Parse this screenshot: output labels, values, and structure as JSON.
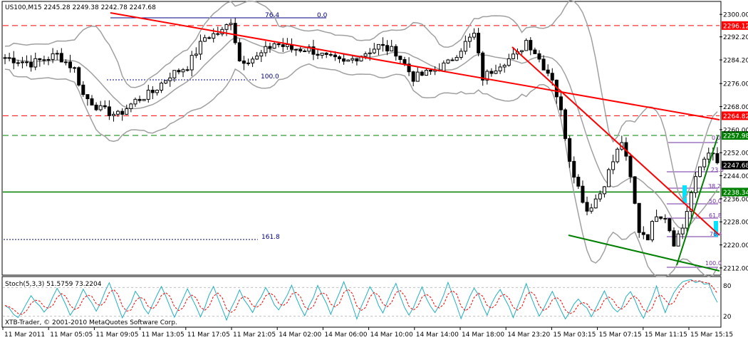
{
  "header": {
    "title": "US100,M15  2245.28 2249.38 2242.78 2247.68",
    "copyright": "XTB-Trader, © 2001-2010 MetaQuotes Software Corp."
  },
  "stoch": {
    "label": "Stoch(5,3,3) 51.5759 73.2204",
    "levels": [
      "80",
      "20"
    ],
    "ylim": [
      0,
      100
    ]
  },
  "colors": {
    "candle": "#000000",
    "bollinger": "#a0a0a0",
    "red_lines": "#ff0000",
    "green_lines": "#008000",
    "fib_lines": "#808080",
    "fib_text": "#7030a0",
    "stoch_main": "#20b0c0",
    "stoch_signal": "#ff0000",
    "current_price_bg": "#000000",
    "level_bg_red": "#ff0000",
    "level_bg_green": "#008000"
  },
  "fib_labels_top": [
    "76.4",
    "0.0",
    "100.0",
    "161.8"
  ],
  "fib_labels_right": [
    "0.0",
    "23.6",
    "38.2",
    "50.0",
    "61.8",
    "76.4",
    "100.0"
  ],
  "chart_data": {
    "type": "candlestick",
    "ylim": [
      2210,
      2304
    ],
    "y_ticks": [
      "2300.00",
      "2292.20",
      "2284.20",
      "2276.00",
      "2268.00",
      "2260.00",
      "2252.00",
      "2244.00",
      "2236.00",
      "2228.00",
      "2220.00",
      "2212.00"
    ],
    "x_ticks": [
      "11 Mar 2011",
      "11 Mar 05:05",
      "11 Mar 09:05",
      "11 Mar 13:05",
      "11 Mar 17:05",
      "11 Mar 21:05",
      "14 Mar 02:00",
      "14 Mar 06:00",
      "14 Mar 10:00",
      "14 Mar 14:00",
      "14 Mar 18:00",
      "14 Mar 23:20",
      "15 Mar 03:15",
      "15 Mar 07:15",
      "15 Mar 11:15",
      "15 Mar 15:15"
    ],
    "price_levels": [
      {
        "value": "2296.12",
        "style": "red-dashed"
      },
      {
        "value": "2264.82",
        "style": "red-dashed"
      },
      {
        "value": "2257.98",
        "style": "green-dashed"
      },
      {
        "value": "2247.68",
        "style": "current"
      },
      {
        "value": "2238.34",
        "style": "green-solid"
      }
    ],
    "anchors": [
      [
        0,
        2285
      ],
      [
        6,
        2283
      ],
      [
        12,
        2286
      ],
      [
        16,
        2281
      ],
      [
        18,
        2272
      ],
      [
        22,
        2267
      ],
      [
        26,
        2265
      ],
      [
        30,
        2270
      ],
      [
        34,
        2273
      ],
      [
        38,
        2279
      ],
      [
        42,
        2282
      ],
      [
        46,
        2292
      ],
      [
        50,
        2294
      ],
      [
        52,
        2298
      ],
      [
        54,
        2284
      ],
      [
        58,
        2285
      ],
      [
        62,
        2290
      ],
      [
        66,
        2288
      ],
      [
        70,
        2288
      ],
      [
        74,
        2285
      ],
      [
        78,
        2283
      ],
      [
        82,
        2286
      ],
      [
        86,
        2289
      ],
      [
        90,
        2287
      ],
      [
        94,
        2278
      ],
      [
        98,
        2280
      ],
      [
        102,
        2283
      ],
      [
        106,
        2290
      ],
      [
        108,
        2293
      ],
      [
        110,
        2278
      ],
      [
        114,
        2283
      ],
      [
        118,
        2286
      ],
      [
        120,
        2291
      ],
      [
        122,
        2287
      ],
      [
        124,
        2282
      ],
      [
        126,
        2278
      ],
      [
        128,
        2266
      ],
      [
        130,
        2250
      ],
      [
        132,
        2240
      ],
      [
        134,
        2232
      ],
      [
        137,
        2238
      ],
      [
        140,
        2249
      ],
      [
        142,
        2256
      ],
      [
        144,
        2243
      ],
      [
        146,
        2225
      ],
      [
        148,
        2223
      ],
      [
        150,
        2231
      ],
      [
        152,
        2230
      ],
      [
        154,
        2221
      ],
      [
        156,
        2226
      ],
      [
        158,
        2238
      ],
      [
        160,
        2247
      ],
      [
        162,
        2253
      ],
      [
        164,
        2248
      ]
    ],
    "stoch_anchors": [
      [
        0,
        45
      ],
      [
        3,
        15
      ],
      [
        6,
        65
      ],
      [
        9,
        25
      ],
      [
        12,
        80
      ],
      [
        15,
        20
      ],
      [
        18,
        75
      ],
      [
        21,
        30
      ],
      [
        24,
        88
      ],
      [
        27,
        15
      ],
      [
        30,
        70
      ],
      [
        33,
        25
      ],
      [
        36,
        85
      ],
      [
        39,
        20
      ],
      [
        42,
        80
      ],
      [
        45,
        20
      ],
      [
        48,
        85
      ],
      [
        51,
        15
      ],
      [
        54,
        75
      ],
      [
        57,
        25
      ],
      [
        60,
        80
      ],
      [
        63,
        30
      ],
      [
        66,
        85
      ],
      [
        69,
        20
      ],
      [
        72,
        82
      ],
      [
        75,
        25
      ],
      [
        78,
        90
      ],
      [
        81,
        15
      ],
      [
        84,
        80
      ],
      [
        87,
        30
      ],
      [
        90,
        85
      ],
      [
        93,
        20
      ],
      [
        96,
        78
      ],
      [
        99,
        25
      ],
      [
        102,
        88
      ],
      [
        105,
        15
      ],
      [
        108,
        82
      ],
      [
        111,
        25
      ],
      [
        114,
        80
      ],
      [
        117,
        20
      ],
      [
        120,
        85
      ],
      [
        123,
        18
      ],
      [
        126,
        75
      ],
      [
        129,
        15
      ],
      [
        132,
        60
      ],
      [
        135,
        20
      ],
      [
        138,
        70
      ],
      [
        141,
        25
      ],
      [
        144,
        75
      ],
      [
        147,
        15
      ],
      [
        150,
        80
      ],
      [
        152,
        30
      ],
      [
        154,
        70
      ],
      [
        156,
        90
      ],
      [
        158,
        95
      ],
      [
        160,
        92
      ],
      [
        162,
        85
      ],
      [
        164,
        45
      ]
    ]
  }
}
